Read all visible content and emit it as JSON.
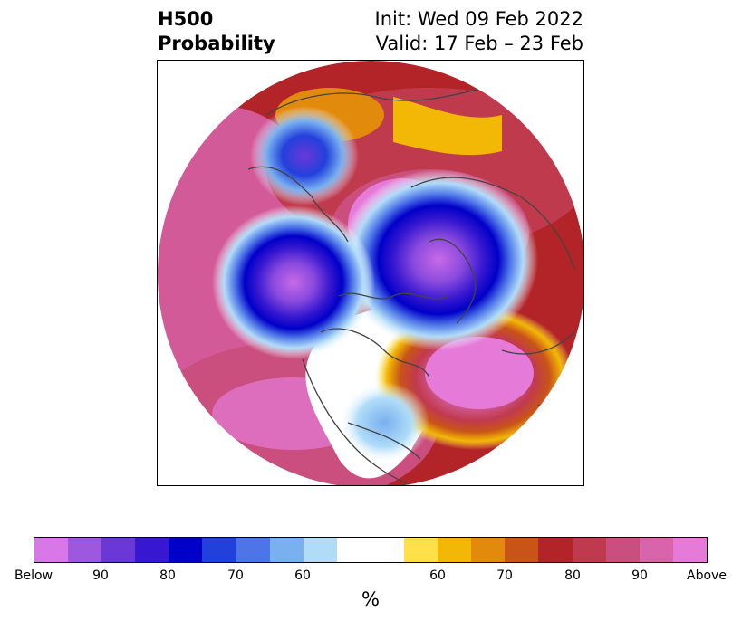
{
  "title": {
    "line1": "H500",
    "line2": "Probability",
    "init": "Init: Wed 09 Feb 2022",
    "valid": "Valid: 17 Feb – 23 Feb"
  },
  "map": {
    "projection": "north-polar-stereographic",
    "features": [
      "coastlines",
      "country-borders",
      "us-state-borders"
    ],
    "anomalies": [
      {
        "region": "Gulf of Alaska / NE Pacific",
        "category": "below",
        "peak": "Below"
      },
      {
        "region": "Siberia / Bering",
        "category": "below",
        "peak": "90"
      },
      {
        "region": "Scandinavia / NW Russia",
        "category": "below",
        "peak": "Below"
      },
      {
        "region": "Eastern US",
        "category": "below",
        "peak": "60"
      },
      {
        "region": "North Atlantic",
        "category": "above",
        "peak": "Above"
      },
      {
        "region": "Eurasia / Arctic",
        "category": "above",
        "peak": "Above"
      },
      {
        "region": "North Pacific",
        "category": "above",
        "peak": "Above"
      }
    ]
  },
  "colorbar": {
    "colors": [
      "#d878e8",
      "#9e58e0",
      "#6b38d8",
      "#3718d0",
      "#0000c8",
      "#2240dc",
      "#4d75e8",
      "#78b0f0",
      "#b0dcf8",
      "#ffffff",
      "#ffe048",
      "#f2b805",
      "#e28a0c",
      "#c95418",
      "#b22428",
      "#c03a4e",
      "#ca4e7e",
      "#d864ac",
      "#e57ad8"
    ],
    "ticks": [
      "Below",
      "90",
      "80",
      "70",
      "60",
      "60",
      "70",
      "80",
      "90",
      "Above"
    ],
    "unit": "%"
  }
}
